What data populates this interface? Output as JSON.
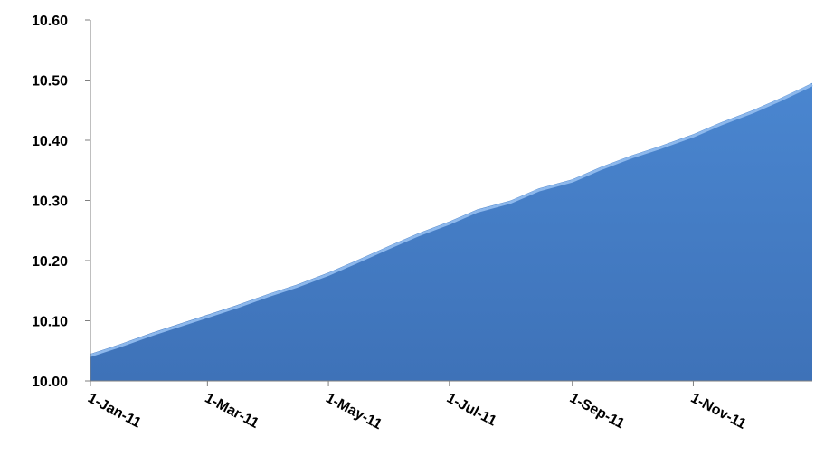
{
  "chart_data": {
    "type": "area",
    "title": "",
    "xlabel": "",
    "ylabel": "",
    "ylim": [
      10.0,
      10.6
    ],
    "yticks": [
      "10.00",
      "10.10",
      "10.20",
      "10.30",
      "10.40",
      "10.50",
      "10.60"
    ],
    "xlim": [
      "2011-01-01",
      "2011-12-31"
    ],
    "xticks": [
      {
        "date": "2011-01-01",
        "label": "1-Jan-11"
      },
      {
        "date": "2011-03-01",
        "label": "1-Mar-11"
      },
      {
        "date": "2011-05-01",
        "label": "1-May-11"
      },
      {
        "date": "2011-07-01",
        "label": "1-Jul-11"
      },
      {
        "date": "2011-09-01",
        "label": "1-Sep-11"
      },
      {
        "date": "2011-11-01",
        "label": "1-Nov-11"
      }
    ],
    "grid": false,
    "fill_color": "#3E72B8",
    "x": [
      "2011-01-01",
      "2011-01-15",
      "2011-02-01",
      "2011-02-15",
      "2011-03-01",
      "2011-03-15",
      "2011-04-01",
      "2011-04-15",
      "2011-05-01",
      "2011-05-15",
      "2011-06-01",
      "2011-06-15",
      "2011-07-01",
      "2011-07-15",
      "2011-08-01",
      "2011-08-15",
      "2011-09-01",
      "2011-09-15",
      "2011-10-01",
      "2011-10-15",
      "2011-11-01",
      "2011-11-15",
      "2011-12-01",
      "2011-12-15",
      "2011-12-31"
    ],
    "values": [
      10.045,
      10.06,
      10.08,
      10.095,
      10.11,
      10.125,
      10.145,
      10.16,
      10.18,
      10.2,
      10.225,
      10.245,
      10.265,
      10.285,
      10.3,
      10.32,
      10.335,
      10.355,
      10.375,
      10.39,
      10.41,
      10.43,
      10.45,
      10.47,
      10.495
    ]
  }
}
